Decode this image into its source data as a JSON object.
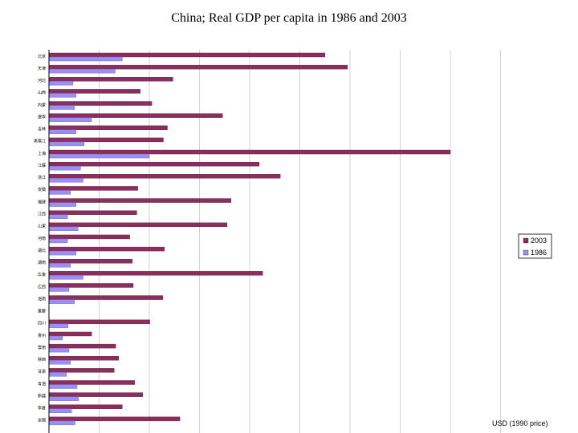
{
  "chart_data": {
    "type": "bar",
    "orientation": "horizontal",
    "title": "China; Real GDP per capita in 1986 and 2003",
    "xlabel": "USD (1990 price)",
    "ylabel": "",
    "xlim": [
      0,
      9000
    ],
    "x_gridlines": [
      0,
      1000,
      2000,
      3000,
      4000,
      5000,
      6000,
      7000,
      8000,
      9000
    ],
    "grid": true,
    "legend_position": "right",
    "categories": [
      "北京",
      "天津",
      "河北",
      "山西",
      "内蒙",
      "遼寧",
      "吉林",
      "黒竜江",
      "上海",
      "江蘇",
      "浙江",
      "安徽",
      "福建",
      "江西",
      "山東",
      "河南",
      "湖北",
      "湖南",
      "広東",
      "広西",
      "海南",
      "重慶",
      "四川",
      "貴州",
      "雲南",
      "陝西",
      "甘粛",
      "青海",
      "新疆",
      "寧夏",
      "全国"
    ],
    "series": [
      {
        "name": "2003",
        "color": "#8b2e5e",
        "values": [
          5500,
          5950,
          2470,
          1820,
          2050,
          3460,
          2360,
          2280,
          8000,
          4190,
          4610,
          1770,
          3630,
          1750,
          3550,
          1610,
          2300,
          1660,
          4260,
          1680,
          2270,
          0,
          2010,
          850,
          1330,
          1390,
          1300,
          1710,
          1870,
          1460,
          2610
        ]
      },
      {
        "name": "1986",
        "color": "#9b8ff0",
        "values": [
          1460,
          1320,
          480,
          540,
          510,
          850,
          540,
          700,
          2000,
          630,
          680,
          430,
          540,
          370,
          580,
          370,
          540,
          430,
          680,
          400,
          510,
          0,
          380,
          270,
          400,
          430,
          350,
          560,
          590,
          450,
          520
        ]
      }
    ]
  }
}
